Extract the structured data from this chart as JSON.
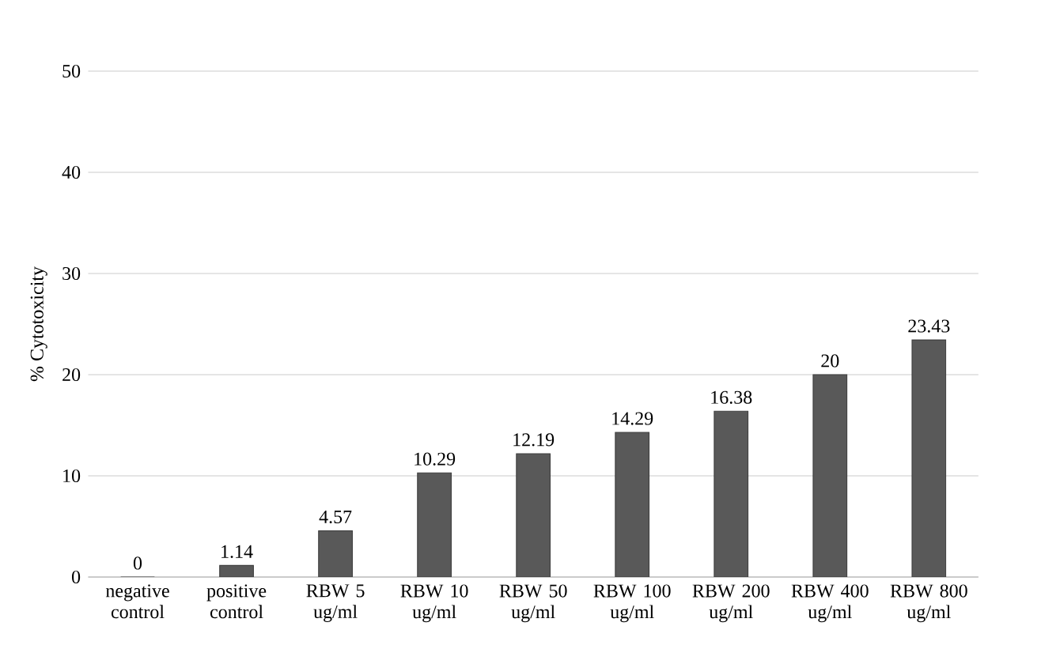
{
  "chart_data": {
    "type": "bar",
    "ylabel": "% Cytotoxicity",
    "categories": [
      "negative control",
      "positive control",
      "RBW 5 ug/ml",
      "RBW 10 ug/ml",
      "RBW 50 ug/ml",
      "RBW 100 ug/ml",
      "RBW 200 ug/ml",
      "RBW 400 ug/ml",
      "RBW 800 ug/ml"
    ],
    "values": [
      0,
      1.14,
      4.57,
      10.29,
      12.19,
      14.29,
      16.38,
      20,
      23.43
    ],
    "color": "#595959",
    "ylim": [
      0,
      50
    ],
    "yticks": [
      0,
      10,
      20,
      30,
      40,
      50
    ],
    "grid": "y",
    "data_labels": true
  }
}
